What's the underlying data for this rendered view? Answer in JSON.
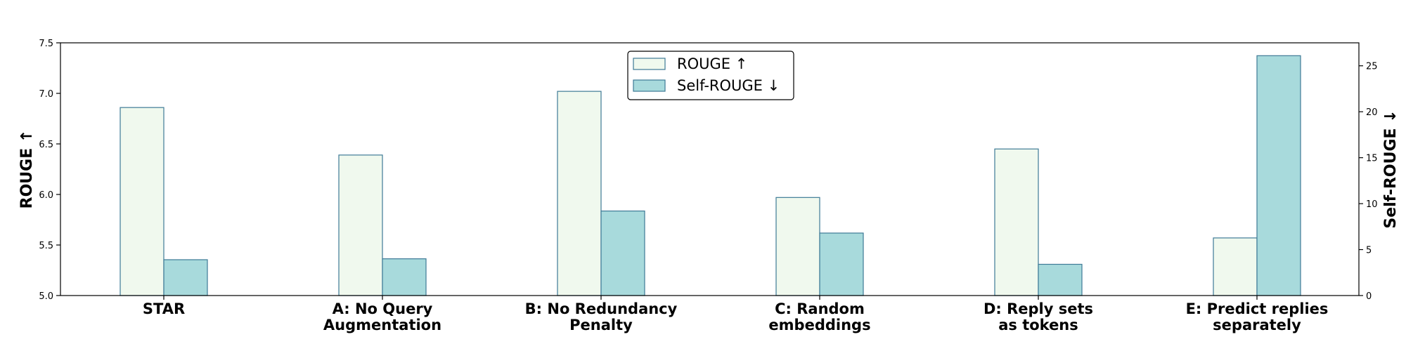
{
  "chart_data": {
    "type": "bar",
    "categories": [
      "STAR",
      "A: No Query\nAugmentation",
      "B: No Redundancy\nPenalty",
      "C: Random\nembeddings",
      "D: Reply sets\nas tokens",
      "E: Predict replies\nseparately"
    ],
    "series": [
      {
        "name": "ROUGE ↑",
        "axis": "left",
        "color": "#f0f9ee",
        "values": [
          6.86,
          6.39,
          7.02,
          5.97,
          6.45,
          5.57
        ]
      },
      {
        "name": "Self-ROUGE ↓",
        "axis": "right",
        "color": "#a8dadc",
        "values": [
          3.9,
          4.0,
          9.2,
          6.8,
          3.4,
          26.1
        ]
      }
    ],
    "ylabel": "ROUGE ↑",
    "ylabel_right": "Self-ROUGE ↓",
    "ylim": [
      5.0,
      7.5
    ],
    "yticks": [
      "5.0",
      "5.5",
      "6.0",
      "6.5",
      "7.0",
      "7.5"
    ],
    "ylim_right": [
      0,
      27.5
    ],
    "yticks_right": [
      "0",
      "5",
      "10",
      "15",
      "20",
      "25"
    ],
    "bar_edge_color": "#3e7a96",
    "legend_position": "top-center",
    "grid": false
  }
}
